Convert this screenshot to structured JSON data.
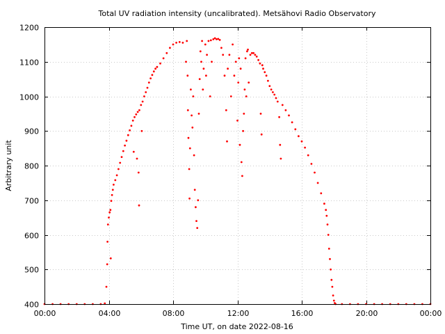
{
  "chart_data": {
    "type": "scatter",
    "title": "Total UV radiation intensity (uncalibrated). Metsähovi Radio Observatory",
    "xlabel": "Time UT, on date 2022-08-16",
    "ylabel": "Arbitrary unit",
    "xlim": [
      0,
      24
    ],
    "ylim": [
      400,
      1200
    ],
    "x_ticks": [
      {
        "value": 0,
        "label": "00:00"
      },
      {
        "value": 4,
        "label": "04:00"
      },
      {
        "value": 8,
        "label": "08:00"
      },
      {
        "value": 12,
        "label": "12:00"
      },
      {
        "value": 16,
        "label": "16:00"
      },
      {
        "value": 20,
        "label": "20:00"
      },
      {
        "value": 24,
        "label": "00:00"
      }
    ],
    "y_ticks": [
      400,
      500,
      600,
      700,
      800,
      900,
      1000,
      1100,
      1200
    ],
    "grid": true,
    "marker_color": "#ff0000",
    "series": [
      {
        "points": [
          [
            0.0,
            400
          ],
          [
            0.5,
            400
          ],
          [
            1.0,
            400
          ],
          [
            1.5,
            400
          ],
          [
            2.0,
            400
          ],
          [
            2.5,
            400
          ],
          [
            3.0,
            400
          ],
          [
            3.5,
            400
          ],
          [
            3.75,
            402
          ],
          [
            3.85,
            450
          ],
          [
            3.9,
            515
          ],
          [
            3.92,
            580
          ],
          [
            3.95,
            630
          ],
          [
            4.0,
            650
          ],
          [
            4.05,
            665
          ],
          [
            4.1,
            672
          ],
          [
            4.12,
            532
          ],
          [
            4.15,
            698
          ],
          [
            4.2,
            715
          ],
          [
            4.25,
            730
          ],
          [
            4.3,
            745
          ],
          [
            4.4,
            758
          ],
          [
            4.5,
            772
          ],
          [
            4.6,
            790
          ],
          [
            4.7,
            808
          ],
          [
            4.8,
            825
          ],
          [
            4.9,
            842
          ],
          [
            5.0,
            858
          ],
          [
            5.1,
            872
          ],
          [
            5.2,
            888
          ],
          [
            5.3,
            902
          ],
          [
            5.4,
            915
          ],
          [
            5.5,
            930
          ],
          [
            5.55,
            840
          ],
          [
            5.6,
            940
          ],
          [
            5.7,
            948
          ],
          [
            5.75,
            820
          ],
          [
            5.8,
            955
          ],
          [
            5.85,
            780
          ],
          [
            5.88,
            685
          ],
          [
            5.9,
            960
          ],
          [
            6.0,
            975
          ],
          [
            6.05,
            900
          ],
          [
            6.1,
            985
          ],
          [
            6.2,
            1000
          ],
          [
            6.3,
            1012
          ],
          [
            6.4,
            1025
          ],
          [
            6.5,
            1040
          ],
          [
            6.6,
            1052
          ],
          [
            6.7,
            1062
          ],
          [
            6.8,
            1072
          ],
          [
            6.9,
            1080
          ],
          [
            7.0,
            1085
          ],
          [
            7.2,
            1095
          ],
          [
            7.4,
            1110
          ],
          [
            7.6,
            1125
          ],
          [
            7.8,
            1140
          ],
          [
            8.0,
            1150
          ],
          [
            8.2,
            1155
          ],
          [
            8.4,
            1157
          ],
          [
            8.6,
            1155
          ],
          [
            8.8,
            1100
          ],
          [
            8.85,
            1160
          ],
          [
            8.9,
            1060
          ],
          [
            8.92,
            960
          ],
          [
            8.95,
            880
          ],
          [
            9.0,
            790
          ],
          [
            9.02,
            705
          ],
          [
            9.05,
            850
          ],
          [
            9.1,
            1020
          ],
          [
            9.15,
            945
          ],
          [
            9.2,
            910
          ],
          [
            9.25,
            1000
          ],
          [
            9.3,
            830
          ],
          [
            9.35,
            730
          ],
          [
            9.4,
            680
          ],
          [
            9.45,
            640
          ],
          [
            9.5,
            620
          ],
          [
            9.55,
            700
          ],
          [
            9.6,
            950
          ],
          [
            9.65,
            1050
          ],
          [
            9.7,
            1130
          ],
          [
            9.75,
            1100
          ],
          [
            9.8,
            1160
          ],
          [
            9.85,
            1020
          ],
          [
            9.9,
            1080
          ],
          [
            10.0,
            1150
          ],
          [
            10.05,
            1060
          ],
          [
            10.1,
            1120
          ],
          [
            10.2,
            1160
          ],
          [
            10.3,
            1000
          ],
          [
            10.35,
            1162
          ],
          [
            10.4,
            1100
          ],
          [
            10.5,
            1165
          ],
          [
            10.6,
            1168
          ],
          [
            10.7,
            1165
          ],
          [
            10.8,
            1166
          ],
          [
            10.9,
            1163
          ],
          [
            11.0,
            1140
          ],
          [
            11.1,
            1120
          ],
          [
            11.2,
            1060
          ],
          [
            11.3,
            960
          ],
          [
            11.35,
            870
          ],
          [
            11.4,
            1080
          ],
          [
            11.5,
            1120
          ],
          [
            11.6,
            1000
          ],
          [
            11.7,
            1150
          ],
          [
            11.8,
            1060
          ],
          [
            11.9,
            1100
          ],
          [
            12.0,
            930
          ],
          [
            12.05,
            1040
          ],
          [
            12.1,
            1110
          ],
          [
            12.15,
            860
          ],
          [
            12.2,
            1080
          ],
          [
            12.25,
            810
          ],
          [
            12.3,
            770
          ],
          [
            12.35,
            900
          ],
          [
            12.4,
            950
          ],
          [
            12.45,
            1020
          ],
          [
            12.5,
            1110
          ],
          [
            12.55,
            1000
          ],
          [
            12.6,
            1130
          ],
          [
            12.65,
            1135
          ],
          [
            12.7,
            1040
          ],
          [
            12.8,
            1120
          ],
          [
            12.9,
            1125
          ],
          [
            13.0,
            1125
          ],
          [
            13.1,
            1120
          ],
          [
            13.2,
            1115
          ],
          [
            13.3,
            1105
          ],
          [
            13.4,
            1095
          ],
          [
            13.45,
            950
          ],
          [
            13.5,
            890
          ],
          [
            13.55,
            1090
          ],
          [
            13.6,
            1080
          ],
          [
            13.7,
            1070
          ],
          [
            13.8,
            1060
          ],
          [
            13.9,
            1045
          ],
          [
            14.0,
            1030
          ],
          [
            14.1,
            1020
          ],
          [
            14.2,
            1012
          ],
          [
            14.3,
            1005
          ],
          [
            14.4,
            995
          ],
          [
            14.5,
            985
          ],
          [
            14.6,
            940
          ],
          [
            14.65,
            860
          ],
          [
            14.7,
            820
          ],
          [
            14.8,
            975
          ],
          [
            15.0,
            960
          ],
          [
            15.2,
            945
          ],
          [
            15.4,
            925
          ],
          [
            15.6,
            905
          ],
          [
            15.8,
            885
          ],
          [
            16.0,
            870
          ],
          [
            16.2,
            852
          ],
          [
            16.4,
            830
          ],
          [
            16.6,
            805
          ],
          [
            16.8,
            780
          ],
          [
            17.0,
            750
          ],
          [
            17.2,
            720
          ],
          [
            17.4,
            690
          ],
          [
            17.5,
            672
          ],
          [
            17.55,
            655
          ],
          [
            17.6,
            630
          ],
          [
            17.65,
            600
          ],
          [
            17.7,
            560
          ],
          [
            17.75,
            530
          ],
          [
            17.8,
            500
          ],
          [
            17.85,
            470
          ],
          [
            17.9,
            450
          ],
          [
            17.95,
            425
          ],
          [
            18.0,
            410
          ],
          [
            18.05,
            403
          ],
          [
            18.1,
            400
          ],
          [
            18.5,
            400
          ],
          [
            19.0,
            400
          ],
          [
            19.5,
            400
          ],
          [
            20.0,
            400
          ],
          [
            20.5,
            400
          ],
          [
            21.0,
            400
          ],
          [
            21.5,
            400
          ],
          [
            22.0,
            400
          ],
          [
            22.5,
            400
          ],
          [
            23.0,
            400
          ],
          [
            23.5,
            400
          ],
          [
            24.0,
            400
          ]
        ]
      }
    ]
  }
}
